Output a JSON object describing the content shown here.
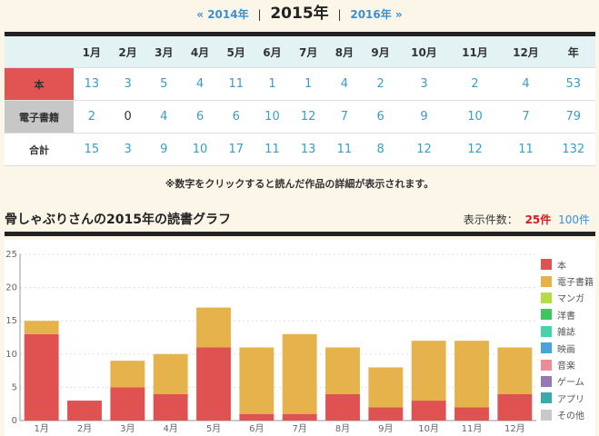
{
  "year_nav": {
    "prev": "« 2014年",
    "current": "2015年",
    "next": "2016年 »",
    "separator": "|"
  },
  "table": {
    "headers": [
      "",
      "1月",
      "2月",
      "3月",
      "4月",
      "5月",
      "6月",
      "7月",
      "8月",
      "9月",
      "10月",
      "11月",
      "12月",
      "年"
    ],
    "rows": [
      {
        "label": "本",
        "values": [
          "13",
          "3",
          "5",
          "4",
          "11",
          "1",
          "1",
          "4",
          "2",
          "3",
          "2",
          "4",
          "53"
        ]
      },
      {
        "label": "電子書籍",
        "values": [
          "2",
          "0",
          "4",
          "6",
          "6",
          "10",
          "12",
          "7",
          "6",
          "9",
          "10",
          "7",
          "79"
        ]
      },
      {
        "label": "合計",
        "values": [
          "15",
          "3",
          "9",
          "10",
          "17",
          "11",
          "13",
          "11",
          "8",
          "12",
          "12",
          "11",
          "132"
        ]
      }
    ]
  },
  "note": "※数字をクリックすると読んだ作品の詳細が表示されます。",
  "graph": {
    "title": "骨しゃぶりさんの2015年の読書グラフ",
    "count_label": "表示件数：",
    "count_active": "25件",
    "count_other": "100件"
  },
  "chart_data": {
    "type": "bar",
    "stacked": true,
    "categories": [
      "1月",
      "2月",
      "3月",
      "4月",
      "5月",
      "6月",
      "7月",
      "8月",
      "9月",
      "10月",
      "11月",
      "12月"
    ],
    "series": [
      {
        "name": "本",
        "color": "#e05252",
        "values": [
          13,
          3,
          5,
          4,
          11,
          1,
          1,
          4,
          2,
          3,
          2,
          4
        ]
      },
      {
        "name": "電子書籍",
        "color": "#e6b24c",
        "values": [
          2,
          0,
          4,
          6,
          6,
          10,
          12,
          7,
          6,
          9,
          10,
          7
        ]
      }
    ],
    "legend_entries": [
      {
        "name": "本",
        "color": "#e05252"
      },
      {
        "name": "電子書籍",
        "color": "#e6b24c"
      },
      {
        "name": "マンガ",
        "color": "#b4dc46"
      },
      {
        "name": "洋書",
        "color": "#3cc85a"
      },
      {
        "name": "雑誌",
        "color": "#46d2aa"
      },
      {
        "name": "映画",
        "color": "#46a5dc"
      },
      {
        "name": "音楽",
        "color": "#eb8c96"
      },
      {
        "name": "ゲーム",
        "color": "#9678b4"
      },
      {
        "name": "アプリ",
        "color": "#3caaaa"
      },
      {
        "name": "その他",
        "color": "#c8c8c8"
      }
    ],
    "ylim": [
      0,
      25
    ],
    "yticks": [
      0,
      5,
      10,
      15,
      20,
      25
    ],
    "grid": true,
    "legend_position": "right"
  }
}
